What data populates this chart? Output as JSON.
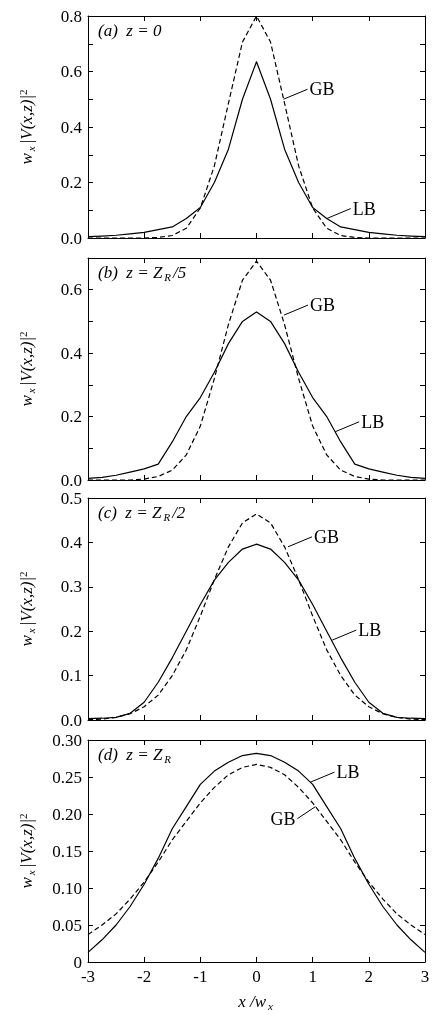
{
  "chart_data": [
    {
      "type": "line",
      "ylabel": "w$_{x}$|V(x,z)|$^{2}$",
      "marker": "none",
      "tick_labels": "y",
      "xlim": [
        -3,
        3
      ],
      "xticks": [
        -3,
        -2,
        -1,
        0,
        1,
        2,
        3
      ],
      "ylim": [
        0,
        0.8
      ],
      "yticks": [
        {
          "value": 0,
          "label": "0.0"
        },
        {
          "value": 0.1,
          "label": null
        },
        0.2,
        {
          "value": 0.3,
          "label": null
        },
        0.4,
        {
          "value": 0.5,
          "label": null
        },
        0.6,
        {
          "value": 0.7,
          "label": null
        },
        0.8
      ],
      "x": [
        -3,
        -2.75,
        -2.5,
        -2.25,
        -2,
        -1.75,
        -1.5,
        -1.25,
        -1,
        -0.75,
        -0.5,
        -0.25,
        0,
        0.25,
        0.5,
        0.75,
        1,
        1.25,
        1.5,
        1.75,
        2,
        2.25,
        2.5,
        2.75,
        3
      ],
      "series": [
        {
          "color": "#000000",
          "line_style": "dashed",
          "values": [
            0,
            0,
            0,
            0,
            0,
            0.002,
            0.009,
            0.035,
            0.108,
            0.26,
            0.485,
            0.706,
            0.8,
            0.706,
            0.485,
            0.26,
            0.108,
            0.035,
            0.009,
            0.002,
            0,
            0,
            0,
            0,
            0
          ]
        },
        {
          "color": "#000000",
          "line_style": "solid",
          "values": [
            0.005,
            0.007,
            0.01,
            0.015,
            0.02,
            0.03,
            0.04,
            0.07,
            0.11,
            0.2,
            0.32,
            0.5,
            0.635,
            0.5,
            0.32,
            0.2,
            0.11,
            0.07,
            0.04,
            0.03,
            0.02,
            0.015,
            0.01,
            0.007,
            0.005
          ]
        }
      ],
      "annotations": [
        "(a)  z = 0",
        {
          "text": "GB",
          "x": 0.48,
          "y": 0.5
        },
        {
          "text": "LB",
          "x": 1.25,
          "y": 0.07
        }
      ]
    },
    {
      "type": "line",
      "ylabel": "w$_{x}$|V(x,z)|$^{2}$",
      "marker": "none",
      "tick_labels": "y",
      "xlim": [
        -3,
        3
      ],
      "xticks": [
        -3,
        -2,
        -1,
        0,
        1,
        2,
        3
      ],
      "ylim": [
        0,
        0.7
      ],
      "yticks": [
        {
          "value": 0,
          "label": "0.0"
        },
        {
          "value": 0.1,
          "label": null
        },
        0.2,
        {
          "value": 0.3,
          "label": null
        },
        0.4,
        {
          "value": 0.5,
          "label": null
        },
        0.6
      ],
      "x": [
        -3,
        -2.75,
        -2.5,
        -2.25,
        -2,
        -1.75,
        -1.5,
        -1.25,
        -1,
        -0.75,
        -0.5,
        -0.25,
        0,
        0.25,
        0.5,
        0.75,
        1,
        1.25,
        1.5,
        1.75,
        2,
        2.25,
        2.5,
        2.75,
        3
      ],
      "series": [
        {
          "color": "#000000",
          "line_style": "dashed",
          "values": [
            0,
            0,
            0,
            0,
            0.003,
            0.011,
            0.031,
            0.079,
            0.17,
            0.32,
            0.49,
            0.63,
            0.69,
            0.63,
            0.49,
            0.32,
            0.17,
            0.079,
            0.031,
            0.011,
            0.003,
            0,
            0,
            0,
            0
          ]
        },
        {
          "color": "#000000",
          "line_style": "solid",
          "values": [
            0.005,
            0.008,
            0.015,
            0.025,
            0.035,
            0.05,
            0.12,
            0.2,
            0.26,
            0.34,
            0.43,
            0.5,
            0.53,
            0.5,
            0.43,
            0.34,
            0.26,
            0.2,
            0.12,
            0.05,
            0.035,
            0.025,
            0.015,
            0.008,
            0.005
          ]
        }
      ],
      "annotations": [
        "(b)  z = Z$_{R}$/5",
        {
          "text": "GB",
          "x": 0.49,
          "y": 0.52
        },
        {
          "text": "LB",
          "x": 1.4,
          "y": 0.152
        }
      ]
    },
    {
      "type": "line",
      "ylabel": "w$_{x}$|V(x,z)|$^{2}$",
      "marker": "none",
      "tick_labels": "y",
      "xlim": [
        -3,
        3
      ],
      "xticks": [
        -3,
        -2,
        -1,
        0,
        1,
        2,
        3
      ],
      "ylim": [
        0,
        0.5
      ],
      "yticks": [
        {
          "value": 0,
          "label": "0.0"
        },
        0.1,
        0.2,
        0.3,
        0.4,
        0.5
      ],
      "x": [
        -3,
        -2.75,
        -2.5,
        -2.25,
        -2,
        -1.75,
        -1.5,
        -1.25,
        -1,
        -0.75,
        -0.5,
        -0.25,
        0,
        0.25,
        0.5,
        0.75,
        1,
        1.25,
        1.5,
        1.75,
        2,
        2.25,
        2.5,
        2.75,
        3
      ],
      "series": [
        {
          "color": "#000000",
          "line_style": "dashed",
          "values": [
            0.001,
            0.002,
            0.006,
            0.014,
            0.03,
            0.056,
            0.1,
            0.158,
            0.234,
            0.316,
            0.39,
            0.444,
            0.464,
            0.444,
            0.39,
            0.316,
            0.234,
            0.158,
            0.1,
            0.056,
            0.03,
            0.014,
            0.006,
            0.002,
            0.001
          ]
        },
        {
          "color": "#000000",
          "line_style": "solid",
          "values": [
            0.003,
            0.004,
            0.006,
            0.015,
            0.04,
            0.085,
            0.14,
            0.2,
            0.26,
            0.315,
            0.355,
            0.385,
            0.396,
            0.385,
            0.355,
            0.315,
            0.26,
            0.2,
            0.14,
            0.085,
            0.04,
            0.015,
            0.006,
            0.004,
            0.003
          ]
        }
      ],
      "annotations": [
        "(c)  z = Z$_{R}$/2",
        {
          "text": "GB",
          "x": 0.56,
          "y": 0.39
        },
        {
          "text": "LB",
          "x": 1.35,
          "y": 0.18
        }
      ]
    },
    {
      "type": "line",
      "ylabel": "w$_{x}$|V(x,z)|$^{2}$",
      "xlabel": "x /w$_{x}$",
      "marker": "none",
      "xlim": [
        -3,
        3
      ],
      "xticks": [
        -3,
        -2,
        -1,
        0,
        1,
        2,
        3
      ],
      "ylim": [
        0,
        0.3
      ],
      "yticks": [
        0,
        0.05,
        {
          "value": 0.1,
          "label": "0.10"
        },
        0.15,
        {
          "value": 0.2,
          "label": "0.20"
        },
        0.25,
        {
          "value": 0.3,
          "label": "0.30"
        }
      ],
      "x": [
        -3,
        -2.75,
        -2.5,
        -2.25,
        -2,
        -1.75,
        -1.5,
        -1.25,
        -1,
        -0.75,
        -0.5,
        -0.25,
        0,
        0.25,
        0.5,
        0.75,
        1,
        1.25,
        1.5,
        1.75,
        2,
        2.25,
        2.5,
        2.75,
        3
      ],
      "series": [
        {
          "color": "#000000",
          "line_style": "dashed",
          "values": [
            0.037,
            0.05,
            0.065,
            0.085,
            0.108,
            0.135,
            0.165,
            0.19,
            0.215,
            0.236,
            0.253,
            0.263,
            0.267,
            0.263,
            0.253,
            0.236,
            0.215,
            0.19,
            0.165,
            0.135,
            0.108,
            0.085,
            0.065,
            0.05,
            0.037
          ]
        },
        {
          "color": "#000000",
          "line_style": "solid",
          "values": [
            0.013,
            0.03,
            0.05,
            0.075,
            0.105,
            0.14,
            0.18,
            0.21,
            0.24,
            0.258,
            0.27,
            0.279,
            0.282,
            0.279,
            0.27,
            0.258,
            0.24,
            0.21,
            0.18,
            0.14,
            0.105,
            0.075,
            0.05,
            0.03,
            0.013
          ]
        }
      ],
      "annotations": [
        "(d)  z = Z$_{R}$",
        {
          "text": "LB",
          "x": 0.96,
          "y": 0.243
        },
        {
          "text": "GB",
          "x": 1.05,
          "y": 0.21
        }
      ]
    }
  ]
}
